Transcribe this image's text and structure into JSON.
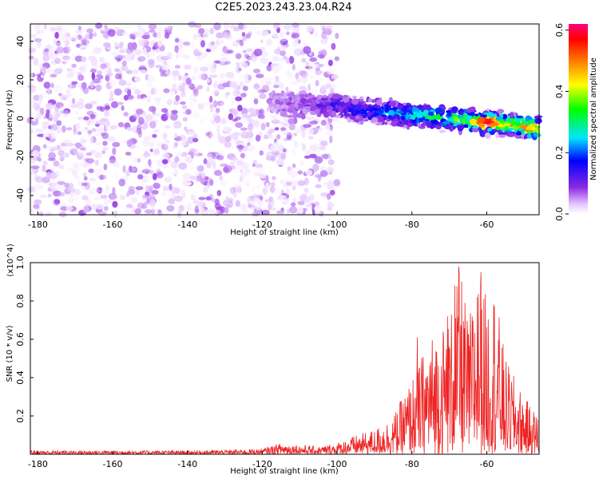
{
  "title": "C2E5.2023.243.23.04.R24",
  "chart_data": [
    {
      "type": "heatmap",
      "xlabel": "Height of straight line (km)",
      "ylabel": "Frequency (Hz)",
      "xlim": [
        -182,
        -46
      ],
      "ylim": [
        -50,
        49
      ],
      "xticks": [
        -180,
        -160,
        -140,
        -120,
        -100,
        -80,
        -60
      ],
      "yticks": [
        -40,
        -20,
        0,
        20,
        40
      ],
      "grid": false,
      "colorbar": {
        "label": "Normalized spectral amplitude",
        "range": [
          0,
          0.62
        ],
        "ticks": [
          0.0,
          0.2,
          0.4,
          0.6
        ],
        "colormap": "rainbow (violet-blue-cyan-green-yellow-orange-red-magenta)"
      },
      "regions": [
        {
          "x_range": [
            -182,
            -100
          ],
          "freq_range": [
            -50,
            49
          ],
          "amplitude": "low (~0.02-0.1), noise across all frequencies"
        },
        {
          "x_range": [
            -118,
            -46
          ],
          "center_freq": [
            [
              -118,
              8
            ],
            [
              -100,
              6
            ],
            [
              -80,
              2
            ],
            [
              -60,
              -2
            ],
            [
              -46,
              -5
            ]
          ],
          "band_halfwidth_hz": 6,
          "amplitude": "rises from ~0.1 to ~0.62"
        }
      ],
      "peak": {
        "x": -60,
        "y": -2,
        "value": 0.62
      }
    },
    {
      "type": "line",
      "xlabel": "Height of straight line (km)",
      "ylabel": "SNR (10 * v/v)",
      "y_multiplier": "(x10^4)",
      "xlim": [
        -182,
        -46
      ],
      "ylim": [
        0,
        1.0
      ],
      "xticks": [
        -180,
        -160,
        -140,
        -120,
        -100,
        -80,
        -60
      ],
      "yticks": [
        0.2,
        0.4,
        0.6,
        0.8,
        1.0
      ],
      "grid": false,
      "color": "#ee2222",
      "envelope": {
        "x": [
          -182,
          -160,
          -140,
          -125,
          -120,
          -115,
          -105,
          -100,
          -95,
          -90,
          -85,
          -80,
          -75,
          -70,
          -67,
          -65,
          -62,
          -60,
          -58,
          -55,
          -50,
          -46
        ],
        "max": [
          0.02,
          0.02,
          0.02,
          0.025,
          0.03,
          0.06,
          0.04,
          0.06,
          0.1,
          0.13,
          0.2,
          0.4,
          0.62,
          0.72,
          0.98,
          0.7,
          0.95,
          0.82,
          0.9,
          0.5,
          0.3,
          0.2
        ]
      },
      "peaks": [
        [
          -67.5,
          0.98
        ],
        [
          -61.5,
          0.95
        ],
        [
          -68.5,
          0.88
        ],
        [
          -62.5,
          0.82
        ],
        [
          -70.5,
          0.72
        ],
        [
          -78.5,
          0.61
        ]
      ]
    }
  ]
}
